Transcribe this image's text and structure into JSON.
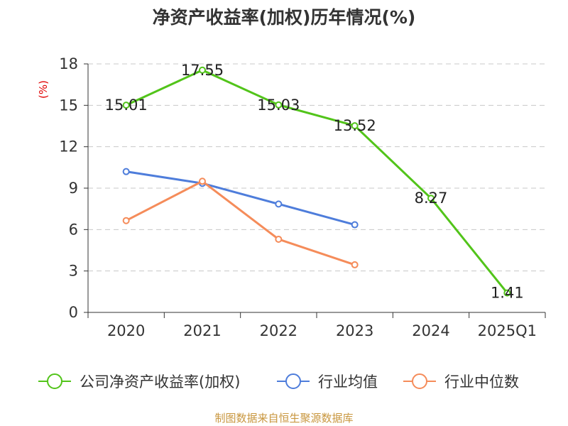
{
  "chart_data": {
    "type": "line",
    "title": "净资产收益率(加权)历年情况(%)",
    "ylabel": "(%)",
    "xlabel": "",
    "categories": [
      "2020",
      "2021",
      "2022",
      "2023",
      "2024",
      "2025Q1"
    ],
    "ylim": [
      0,
      18
    ],
    "yticks": [
      0,
      3,
      6,
      9,
      12,
      15,
      18
    ],
    "grid": true,
    "legend_position": "bottom",
    "series": [
      {
        "name": "公司净资产收益率(加权)",
        "color": "#52c41a",
        "values": [
          15.01,
          17.55,
          15.03,
          13.52,
          8.27,
          1.41
        ],
        "labels": [
          "15.01",
          "17.55",
          "15.03",
          "13.52",
          "8.27",
          "1.41"
        ]
      },
      {
        "name": "行业均值",
        "color": "#4e7ddb",
        "values": [
          10.2,
          9.35,
          7.85,
          6.35,
          null,
          null
        ]
      },
      {
        "name": "行业中位数",
        "color": "#f58c5a",
        "values": [
          6.65,
          9.5,
          5.3,
          3.45,
          null,
          null
        ]
      }
    ],
    "source": "制图数据来自恒生聚源数据库"
  }
}
